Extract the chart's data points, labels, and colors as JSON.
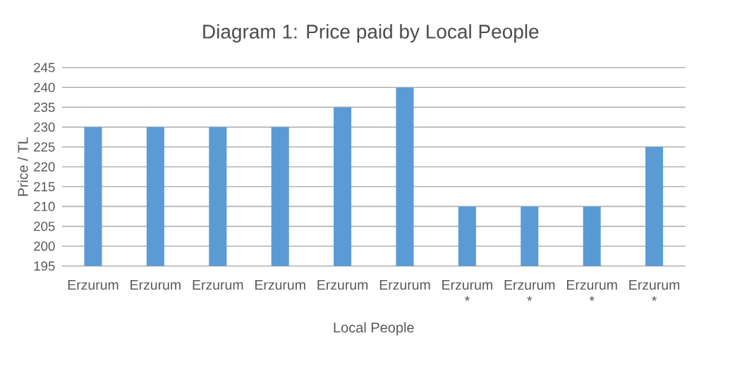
{
  "chart_data": {
    "type": "bar",
    "title": "Diagram 1: Price paid by Local People",
    "xlabel": "Local People",
    "ylabel": "Price / TL",
    "categories": [
      "Erzurum",
      "Erzurum",
      "Erzurum",
      "Erzurum",
      "Erzurum",
      "Erzurum",
      "Erzurum *",
      "Erzurum *",
      "Erzurum *",
      "Erzurum *"
    ],
    "values": [
      230,
      230,
      230,
      230,
      235,
      240,
      210,
      210,
      210,
      225
    ],
    "color": "#5b9bd5",
    "ylim": [
      195,
      245
    ],
    "yticks": [
      195,
      200,
      205,
      210,
      215,
      220,
      225,
      230,
      235,
      240,
      245
    ],
    "grid": "y"
  }
}
